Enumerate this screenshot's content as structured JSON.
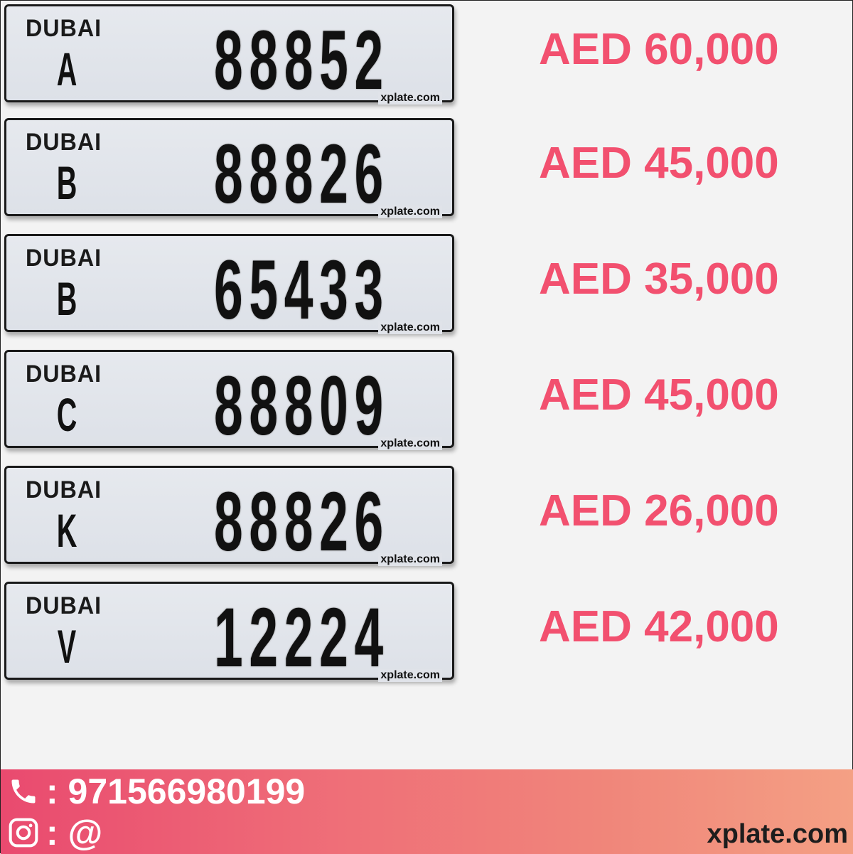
{
  "plates": [
    {
      "emirate": "DUBAI",
      "code": "A",
      "number": "88852",
      "watermark": "xplate.com",
      "price": "AED 60,000"
    },
    {
      "emirate": "DUBAI",
      "code": "B",
      "number": "88826",
      "watermark": "xplate.com",
      "price": "AED 45,000"
    },
    {
      "emirate": "DUBAI",
      "code": "B",
      "number": "65433",
      "watermark": "xplate.com",
      "price": "AED 35,000"
    },
    {
      "emirate": "DUBAI",
      "code": "C",
      "number": "88809",
      "watermark": "xplate.com",
      "price": "AED 45,000"
    },
    {
      "emirate": "DUBAI",
      "code": "K",
      "number": "88826",
      "watermark": "xplate.com",
      "price": "AED 26,000"
    },
    {
      "emirate": "DUBAI",
      "code": "V",
      "number": "12224",
      "watermark": "xplate.com",
      "price": "AED 42,000"
    }
  ],
  "footer": {
    "phone_icon": "phone-icon",
    "phone": ": 971566980199",
    "instagram_icon": "instagram-icon",
    "instagram": ": @",
    "site": "xplate.com"
  },
  "colors": {
    "price": "#f2506f",
    "footer_start": "#e94a6f",
    "footer_end": "#f4a084"
  }
}
